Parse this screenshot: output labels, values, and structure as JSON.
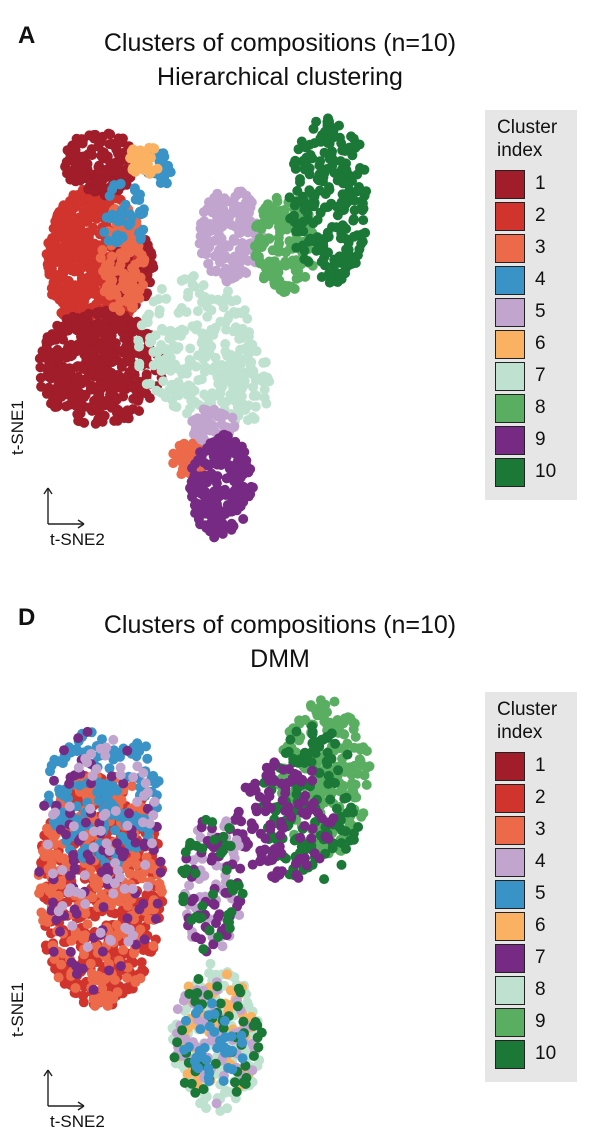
{
  "chart_data": [
    {
      "type": "scatter",
      "panel_label": "A",
      "title": "Clusters of compositions (n=10)",
      "subtitle": "Hierarchical clustering",
      "xlabel": "t-SNE2",
      "ylabel": "t-SNE1",
      "legend": {
        "title_line1": "Cluster",
        "title_line2": "index",
        "placement": "right",
        "entries": [
          {
            "label": "1",
            "color": "#a11d2a"
          },
          {
            "label": "2",
            "color": "#d0342c"
          },
          {
            "label": "3",
            "color": "#ec6a4a"
          },
          {
            "label": "4",
            "color": "#3a93c6"
          },
          {
            "label": "5",
            "color": "#c2a5cf"
          },
          {
            "label": "6",
            "color": "#fbb162"
          },
          {
            "label": "7",
            "color": "#bfe2d0"
          },
          {
            "label": "8",
            "color": "#5aae61"
          },
          {
            "label": "9",
            "color": "#762a83"
          },
          {
            "label": "10",
            "color": "#1b7837"
          }
        ]
      },
      "grid": false,
      "regions": [
        {
          "cluster": "2",
          "x": [
            8,
            30
          ],
          "y": [
            48,
            82
          ],
          "count": 520
        },
        {
          "cluster": "1",
          "x": [
            6,
            34
          ],
          "y": [
            28,
            54
          ],
          "count": 420
        },
        {
          "cluster": "1",
          "x": [
            12,
            28
          ],
          "y": [
            80,
            95
          ],
          "count": 140
        },
        {
          "cluster": "1",
          "x": [
            22,
            32
          ],
          "y": [
            55,
            72
          ],
          "count": 90
        },
        {
          "cluster": "3",
          "x": [
            20,
            30
          ],
          "y": [
            52,
            78
          ],
          "count": 110
        },
        {
          "cluster": "3",
          "x": [
            36,
            44
          ],
          "y": [
            16,
            24
          ],
          "count": 40
        },
        {
          "cluster": "4",
          "x": [
            20,
            30
          ],
          "y": [
            66,
            84
          ],
          "count": 45
        },
        {
          "cluster": "4",
          "x": [
            30,
            36
          ],
          "y": [
            82,
            90
          ],
          "count": 25
        },
        {
          "cluster": "6",
          "x": [
            26,
            34
          ],
          "y": [
            84,
            92
          ],
          "count": 25
        },
        {
          "cluster": "7",
          "x": [
            28,
            54
          ],
          "y": [
            30,
            62
          ],
          "count": 210
        },
        {
          "cluster": "7",
          "x": [
            46,
            58
          ],
          "y": [
            28,
            48
          ],
          "count": 80
        },
        {
          "cluster": "5",
          "x": [
            42,
            56
          ],
          "y": [
            60,
            82
          ],
          "count": 160
        },
        {
          "cluster": "5",
          "x": [
            40,
            50
          ],
          "y": [
            24,
            32
          ],
          "count": 50
        },
        {
          "cluster": "8",
          "x": [
            54,
            68
          ],
          "y": [
            58,
            80
          ],
          "count": 130
        },
        {
          "cluster": "10",
          "x": [
            62,
            80
          ],
          "y": [
            60,
            98
          ],
          "count": 230
        },
        {
          "cluster": "9",
          "x": [
            40,
            54
          ],
          "y": [
            2,
            26
          ],
          "count": 210
        }
      ]
    },
    {
      "type": "scatter",
      "panel_label": "D",
      "title": "Clusters of compositions (n=10)",
      "subtitle": "DMM",
      "xlabel": "t-SNE2",
      "ylabel": "t-SNE1",
      "legend": {
        "title_line1": "Cluster",
        "title_line2": "index",
        "placement": "right",
        "entries": [
          {
            "label": "1",
            "color": "#a11d2a"
          },
          {
            "label": "2",
            "color": "#d0342c"
          },
          {
            "label": "3",
            "color": "#ec6a4a"
          },
          {
            "label": "4",
            "color": "#c2a5cf"
          },
          {
            "label": "5",
            "color": "#3a93c6"
          },
          {
            "label": "6",
            "color": "#fbb162"
          },
          {
            "label": "7",
            "color": "#762a83"
          },
          {
            "label": "8",
            "color": "#bfe2d0"
          },
          {
            "label": "9",
            "color": "#5aae61"
          },
          {
            "label": "10",
            "color": "#1b7837"
          }
        ]
      },
      "grid": false,
      "regions": [
        {
          "cluster": "2",
          "x": [
            6,
            34
          ],
          "y": [
            28,
            82
          ],
          "count": 520
        },
        {
          "cluster": "3",
          "x": [
            6,
            34
          ],
          "y": [
            28,
            82
          ],
          "count": 300
        },
        {
          "cluster": "5",
          "x": [
            8,
            34
          ],
          "y": [
            60,
            92
          ],
          "count": 160
        },
        {
          "cluster": "7",
          "x": [
            6,
            34
          ],
          "y": [
            30,
            92
          ],
          "count": 90
        },
        {
          "cluster": "4",
          "x": [
            8,
            34
          ],
          "y": [
            40,
            90
          ],
          "count": 70
        },
        {
          "cluster": "9",
          "x": [
            60,
            80
          ],
          "y": [
            62,
            98
          ],
          "count": 220
        },
        {
          "cluster": "10",
          "x": [
            56,
            78
          ],
          "y": [
            56,
            92
          ],
          "count": 140
        },
        {
          "cluster": "7",
          "x": [
            50,
            72
          ],
          "y": [
            56,
            84
          ],
          "count": 110
        },
        {
          "cluster": "8",
          "x": [
            36,
            56
          ],
          "y": [
            4,
            38
          ],
          "count": 180
        },
        {
          "cluster": "6",
          "x": [
            36,
            56
          ],
          "y": [
            8,
            36
          ],
          "count": 60
        },
        {
          "cluster": "4",
          "x": [
            36,
            56
          ],
          "y": [
            6,
            36
          ],
          "count": 60
        },
        {
          "cluster": "10",
          "x": [
            36,
            56
          ],
          "y": [
            6,
            36
          ],
          "count": 50
        },
        {
          "cluster": "5",
          "x": [
            38,
            52
          ],
          "y": [
            8,
            30
          ],
          "count": 40
        },
        {
          "cluster": "4",
          "x": [
            38,
            52
          ],
          "y": [
            40,
            72
          ],
          "count": 60
        },
        {
          "cluster": "7",
          "x": [
            38,
            52
          ],
          "y": [
            40,
            72
          ],
          "count": 50
        },
        {
          "cluster": "10",
          "x": [
            38,
            52
          ],
          "y": [
            40,
            72
          ],
          "count": 40
        }
      ]
    }
  ]
}
